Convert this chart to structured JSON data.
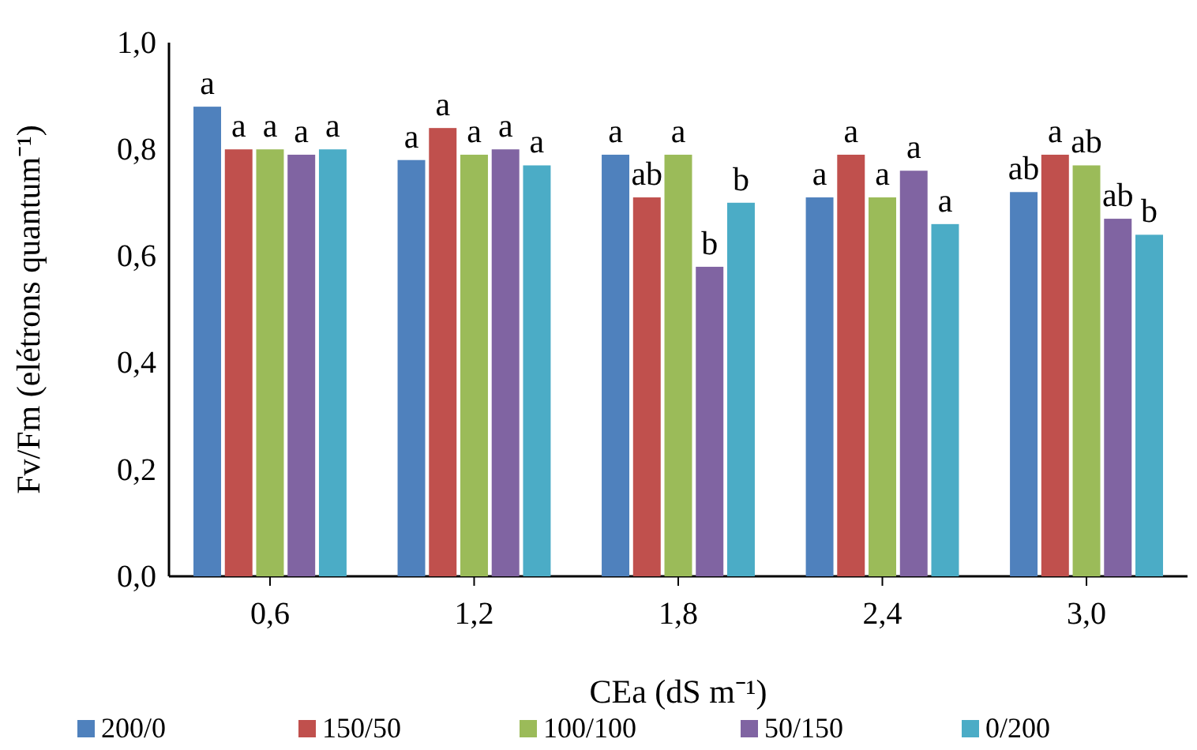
{
  "chart_data": {
    "type": "bar",
    "xlabel": "CEa (dS m⁻¹)",
    "ylabel": "Fv/Fm (elétrons quantum⁻¹)",
    "categories": [
      "0,6",
      "1,2",
      "1,8",
      "2,4",
      "3,0"
    ],
    "series": [
      {
        "name": "200/0",
        "color": "#4f81bd",
        "values": [
          0.88,
          0.78,
          0.79,
          0.71,
          0.72
        ],
        "value_labels": [
          "a",
          "a",
          "a",
          "a",
          "ab"
        ]
      },
      {
        "name": "150/50",
        "color": "#c0504d",
        "values": [
          0.8,
          0.84,
          0.71,
          0.79,
          0.79
        ],
        "value_labels": [
          "a",
          "a",
          "ab",
          "a",
          "a"
        ]
      },
      {
        "name": "100/100",
        "color": "#9bbb59",
        "values": [
          0.8,
          0.79,
          0.79,
          0.71,
          0.77
        ],
        "value_labels": [
          "a",
          "a",
          "a",
          "a",
          "ab"
        ]
      },
      {
        "name": "50/150",
        "color": "#8064a2",
        "values": [
          0.79,
          0.8,
          0.58,
          0.76,
          0.67
        ],
        "value_labels": [
          "a",
          "a",
          "b",
          "a",
          "ab"
        ]
      },
      {
        "name": "0/200",
        "color": "#4bacc6",
        "values": [
          0.8,
          0.77,
          0.7,
          0.66,
          0.64
        ],
        "value_labels": [
          "a",
          "a",
          "b",
          "a",
          "b"
        ]
      }
    ],
    "ylim": [
      0,
      1
    ],
    "yticks": [
      {
        "value": 0,
        "label": "0,0"
      },
      {
        "value": 0.2,
        "label": "0,2"
      },
      {
        "value": 0.4,
        "label": "0,4"
      },
      {
        "value": 0.6,
        "label": "0,6"
      },
      {
        "value": 0.8,
        "label": "0,8"
      },
      {
        "value": 1,
        "label": "1,0"
      }
    ],
    "grid": false,
    "legend": "bottom"
  }
}
